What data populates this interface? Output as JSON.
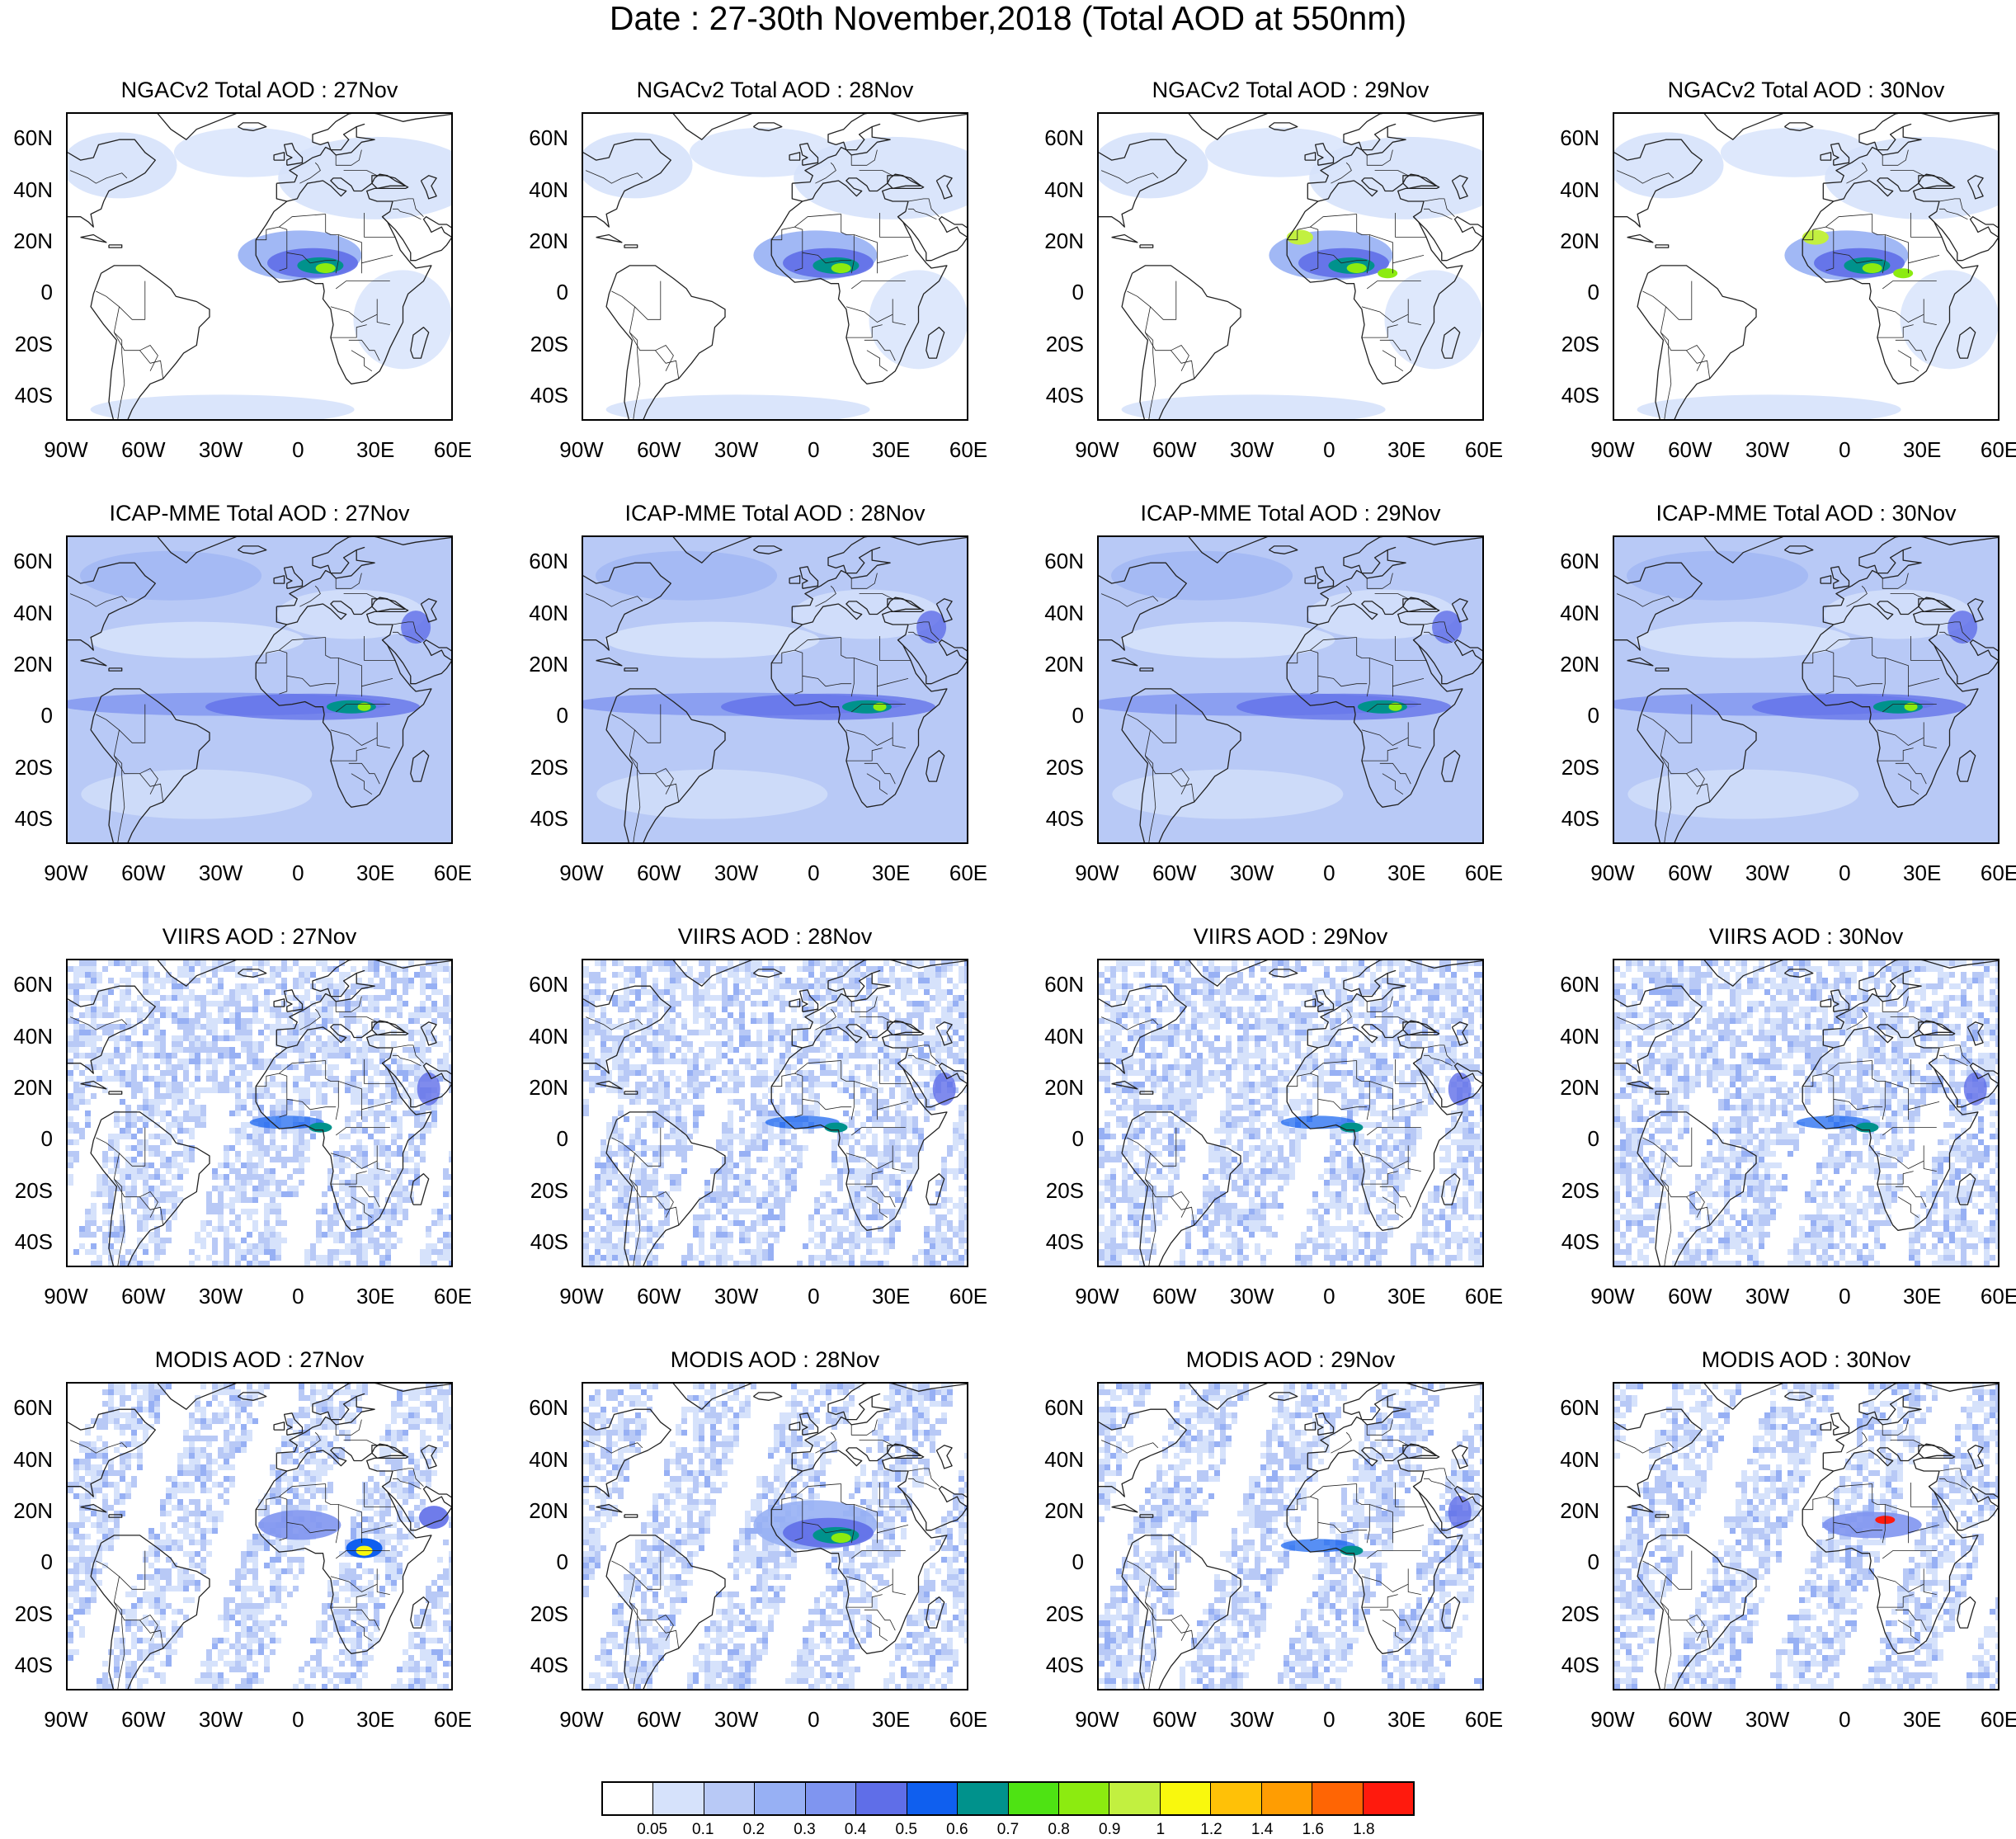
{
  "title": "Date : 27-30th November,2018 (Total AOD at 550nm)",
  "map_axes": {
    "lon_labels": [
      "90W",
      "60W",
      "30W",
      "0",
      "30E",
      "60E"
    ],
    "lat_labels": [
      "60N",
      "40N",
      "20N",
      "0",
      "20S",
      "40S"
    ],
    "lon_range": [
      -90,
      60
    ],
    "lat_range": [
      -50,
      70
    ]
  },
  "panels": [
    {
      "title": "NGACv2 Total AOD : 27Nov",
      "source": "model",
      "plume": "west-africa-dust",
      "background": "light"
    },
    {
      "title": "NGACv2 Total AOD : 28Nov",
      "source": "model",
      "plume": "west-africa-dust",
      "background": "light"
    },
    {
      "title": "NGACv2 Total AOD : 29Nov",
      "source": "model",
      "plume": "west-africa-dust-strong",
      "background": "light"
    },
    {
      "title": "NGACv2 Total AOD : 30Nov",
      "source": "model",
      "plume": "west-africa-dust-strong",
      "background": "light"
    },
    {
      "title": "ICAP-MME Total AOD : 27Nov",
      "source": "ensemble",
      "plume": "equatorial-band",
      "background": "medium"
    },
    {
      "title": "ICAP-MME Total AOD : 28Nov",
      "source": "ensemble",
      "plume": "equatorial-band",
      "background": "medium"
    },
    {
      "title": "ICAP-MME Total AOD : 29Nov",
      "source": "ensemble",
      "plume": "equatorial-band",
      "background": "medium"
    },
    {
      "title": "ICAP-MME Total AOD : 30Nov",
      "source": "ensemble",
      "plume": "equatorial-band",
      "background": "medium"
    },
    {
      "title": "VIIRS AOD : 27Nov",
      "source": "satellite",
      "plume": "guinea-coast",
      "background": "speckled"
    },
    {
      "title": "VIIRS AOD : 28Nov",
      "source": "satellite",
      "plume": "guinea-coast",
      "background": "speckled"
    },
    {
      "title": "VIIRS AOD : 29Nov",
      "source": "satellite",
      "plume": "guinea-coast",
      "background": "speckled"
    },
    {
      "title": "VIIRS AOD : 30Nov",
      "source": "satellite",
      "plume": "guinea-coast",
      "background": "speckled"
    },
    {
      "title": "MODIS AOD : 27Nov",
      "source": "satellite",
      "plume": "central-africa-hotspot",
      "background": "swaths"
    },
    {
      "title": "MODIS AOD : 28Nov",
      "source": "satellite",
      "plume": "west-africa-dust",
      "background": "swaths"
    },
    {
      "title": "MODIS AOD : 29Nov",
      "source": "satellite",
      "plume": "guinea-coast",
      "background": "swaths"
    },
    {
      "title": "MODIS AOD : 30Nov",
      "source": "satellite",
      "plume": "sahel-hotspot",
      "background": "swaths"
    }
  ],
  "colorbar": {
    "labels": [
      "0.05",
      "0.1",
      "0.2",
      "0.3",
      "0.4",
      "0.5",
      "0.6",
      "0.7",
      "0.8",
      "0.9",
      "1",
      "1.2",
      "1.4",
      "1.6",
      "1.8"
    ],
    "colors": [
      "#ffffff",
      "#d6e2fb",
      "#b8c9f6",
      "#97b0f4",
      "#7f95f0",
      "#5f6ee8",
      "#0f5fef",
      "#00928c",
      "#4ee313",
      "#8ceb10",
      "#c2f040",
      "#f9f80d",
      "#ffc107",
      "#ff9d02",
      "#ff6504",
      "#ff1a0d"
    ]
  }
}
